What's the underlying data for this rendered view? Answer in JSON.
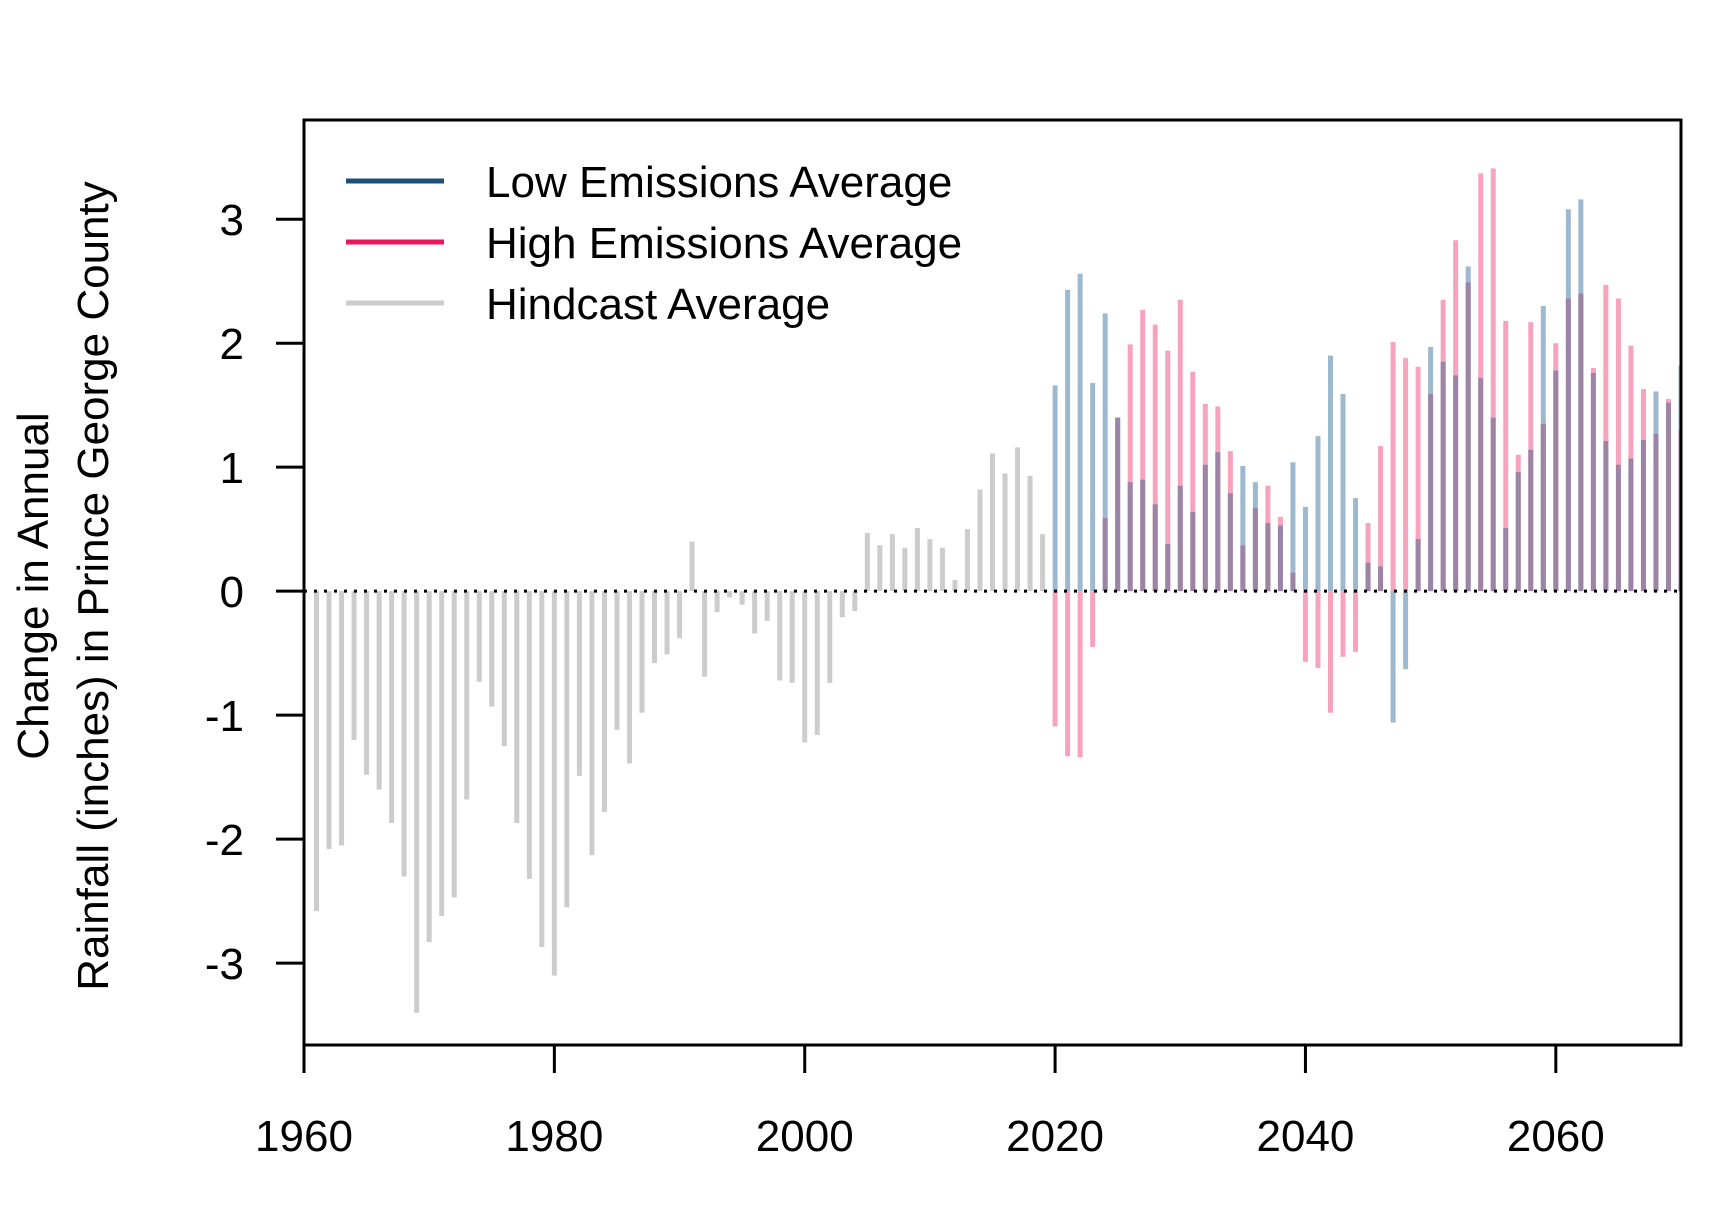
{
  "chart_data": {
    "type": "bar",
    "title": "",
    "xlabel": "",
    "ylabel_lines": [
      "Change in Annual",
      "Rainfall (inches) in Prince George County"
    ],
    "xlim": [
      1960,
      2070
    ],
    "ylim": [
      -3.66,
      3.8
    ],
    "x_ticks": [
      1960,
      1980,
      2000,
      2020,
      2040,
      2060
    ],
    "y_ticks": [
      -3,
      -2,
      -1,
      0,
      1,
      2,
      3
    ],
    "grid": false,
    "legend_position": "top-left",
    "reference_line": 0,
    "colors": {
      "low": "#1b4f7e",
      "high": "#e8175d",
      "hindcast": "#cccccc",
      "low_bar": "#9db9d0",
      "high_bar": "#f7a3bd",
      "overlap_bar": "#9c84a6"
    },
    "series": [
      {
        "name": "Hindcast Average",
        "key": "hindcast",
        "x": [
          1961,
          1962,
          1963,
          1964,
          1965,
          1966,
          1967,
          1968,
          1969,
          1970,
          1971,
          1972,
          1973,
          1974,
          1975,
          1976,
          1977,
          1978,
          1979,
          1980,
          1981,
          1982,
          1983,
          1984,
          1985,
          1986,
          1987,
          1988,
          1989,
          1990,
          1991,
          1992,
          1993,
          1994,
          1995,
          1996,
          1997,
          1998,
          1999,
          2000,
          2001,
          2002,
          2003,
          2004,
          2005,
          2006,
          2007,
          2008,
          2009,
          2010,
          2011,
          2012,
          2013,
          2014,
          2015,
          2016,
          2017,
          2018,
          2019
        ],
        "values": [
          -2.58,
          -2.08,
          -2.05,
          -1.2,
          -1.48,
          -1.6,
          -1.87,
          -2.3,
          -3.4,
          -2.83,
          -2.62,
          -2.47,
          -1.68,
          -0.73,
          -0.93,
          -1.25,
          -1.87,
          -2.32,
          -2.87,
          -3.1,
          -2.55,
          -1.49,
          -2.13,
          -1.78,
          -1.12,
          -1.39,
          -0.98,
          -0.58,
          -0.51,
          -0.38,
          0.4,
          -0.69,
          -0.17,
          -0.05,
          -0.11,
          -0.34,
          -0.24,
          -0.72,
          -0.74,
          -1.22,
          -1.16,
          -0.74,
          -0.21,
          -0.16,
          0.47,
          0.37,
          0.46,
          0.35,
          0.51,
          0.42,
          0.35,
          0.09,
          0.5,
          0.82,
          1.11,
          0.95,
          1.16,
          0.93,
          0.46
        ]
      },
      {
        "name": "Low Emissions Average",
        "key": "low",
        "x": [
          2020,
          2021,
          2022,
          2023,
          2024,
          2025,
          2026,
          2027,
          2028,
          2029,
          2030,
          2031,
          2032,
          2033,
          2034,
          2035,
          2036,
          2037,
          2038,
          2039,
          2040,
          2041,
          2042,
          2043,
          2044,
          2045,
          2046,
          2047,
          2048,
          2049,
          2050,
          2051,
          2052,
          2053,
          2054,
          2055,
          2056,
          2057,
          2058,
          2059,
          2060,
          2061,
          2062,
          2063,
          2064,
          2065,
          2066,
          2067,
          2068,
          2069,
          2070
        ],
        "values": [
          1.66,
          2.43,
          2.56,
          1.68,
          2.24,
          1.4,
          0.88,
          0.9,
          0.7,
          0.38,
          0.85,
          0.64,
          1.02,
          1.12,
          0.79,
          1.01,
          0.88,
          0.55,
          0.53,
          1.04,
          0.68,
          1.25,
          1.9,
          1.59,
          0.75,
          0.23,
          0.2,
          -1.06,
          -0.63,
          0.42,
          1.97,
          1.85,
          1.74,
          2.62,
          1.72,
          1.4,
          0.51,
          0.96,
          1.14,
          2.3,
          1.78,
          3.08,
          3.16,
          1.76,
          1.21,
          1.02,
          1.07,
          1.22,
          1.61,
          1.52,
          1.82
        ]
      },
      {
        "name": "High Emissions Average",
        "key": "high",
        "x": [
          2020,
          2021,
          2022,
          2023,
          2024,
          2025,
          2026,
          2027,
          2028,
          2029,
          2030,
          2031,
          2032,
          2033,
          2034,
          2035,
          2036,
          2037,
          2038,
          2039,
          2040,
          2041,
          2042,
          2043,
          2044,
          2045,
          2046,
          2047,
          2048,
          2049,
          2050,
          2051,
          2052,
          2053,
          2054,
          2055,
          2056,
          2057,
          2058,
          2059,
          2060,
          2061,
          2062,
          2063,
          2064,
          2065,
          2066,
          2067,
          2068,
          2069,
          2070
        ],
        "values": [
          -1.09,
          -1.33,
          -1.34,
          -0.45,
          0.59,
          1.4,
          1.99,
          2.27,
          2.15,
          1.94,
          2.35,
          1.77,
          1.51,
          1.49,
          1.13,
          0.37,
          0.67,
          0.85,
          0.6,
          0.15,
          -0.57,
          -0.62,
          -0.98,
          -0.53,
          -0.49,
          0.55,
          1.17,
          2.01,
          1.88,
          1.81,
          1.59,
          2.35,
          2.83,
          2.49,
          3.37,
          3.41,
          2.18,
          1.1,
          2.17,
          1.35,
          2.0,
          2.36,
          2.4,
          1.8,
          2.47,
          2.36,
          1.98,
          1.63,
          1.27,
          1.55,
          1.3
        ]
      }
    ]
  }
}
